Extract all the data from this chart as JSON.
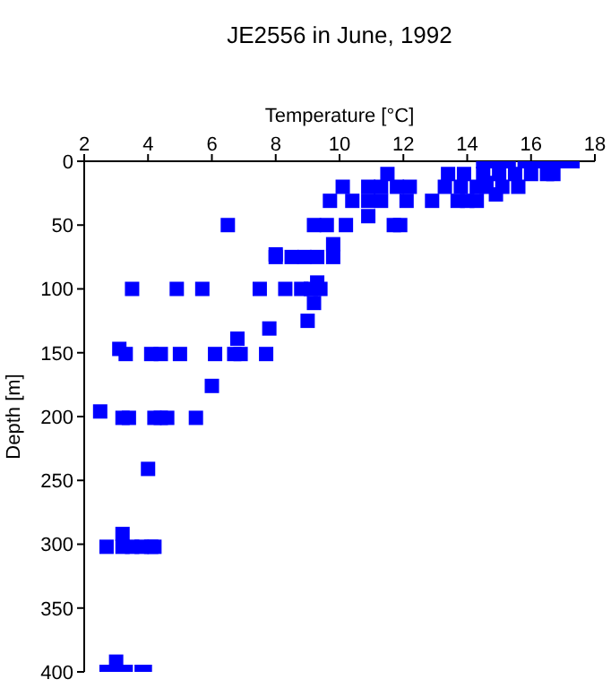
{
  "chart_data": {
    "type": "scatter",
    "title": "JE2556 in June, 1992",
    "xlabel": "Temperature [°C]",
    "ylabel": "Depth [m]",
    "xlim": [
      2,
      18
    ],
    "xticks": [
      2,
      4,
      6,
      8,
      10,
      12,
      14,
      16,
      18
    ],
    "ylim": [
      400,
      0
    ],
    "yticks": [
      0,
      50,
      100,
      150,
      200,
      250,
      300,
      350,
      400
    ],
    "grid": false,
    "legend": false,
    "marker": "square",
    "series": [
      {
        "color": "#0000ff",
        "x": [
          14.5,
          14.9,
          15.3,
          15.8,
          16.1,
          16.5,
          16.9,
          17.3,
          11.5,
          13.4,
          13.9,
          14.5,
          15.0,
          15.5,
          16.0,
          16.5,
          16.7,
          10.1,
          10.9,
          11.3,
          11.8,
          12.2,
          13.3,
          13.8,
          14.3,
          14.6,
          15.1,
          15.6,
          14.6,
          14.9,
          9.7,
          10.4,
          10.9,
          11.3,
          12.1,
          12.9,
          13.7,
          14.0,
          14.3,
          10.9,
          6.5,
          9.2,
          9.6,
          10.2,
          11.7,
          11.9,
          9.8,
          8.0,
          8.5,
          8.9,
          9.3,
          9.8,
          8.0,
          3.5,
          4.9,
          5.7,
          7.5,
          8.3,
          8.8,
          9.1,
          9.4,
          9.3,
          9.2,
          9.0,
          7.8,
          6.8,
          3.1,
          3.3,
          4.1,
          4.4,
          5.0,
          6.1,
          6.7,
          6.9,
          7.7,
          6.0,
          2.5,
          3.2,
          3.4,
          4.2,
          4.4,
          4.6,
          5.5,
          4.0,
          3.2,
          2.7,
          3.2,
          3.5,
          3.8,
          4.1,
          4.2,
          3.0,
          2.7,
          2.9,
          3.3,
          3.8,
          3.9
        ],
        "values": [
          0,
          0,
          0,
          0,
          0,
          0,
          0,
          0,
          10,
          10,
          10,
          10,
          10,
          10,
          10,
          10,
          10,
          20,
          20,
          20,
          20,
          20,
          20,
          20,
          20,
          20,
          20,
          20,
          17,
          26,
          31,
          31,
          31,
          31,
          31,
          31,
          31,
          31,
          31,
          43,
          50,
          50,
          50,
          50,
          50,
          50,
          65,
          75,
          75,
          75,
          75,
          75,
          73,
          100,
          100,
          100,
          100,
          100,
          100,
          100,
          100,
          95,
          111,
          125,
          131,
          139,
          147,
          151,
          151,
          151,
          151,
          151,
          151,
          151,
          151,
          176,
          196,
          201,
          201,
          201,
          201,
          201,
          201,
          241,
          292,
          302,
          302,
          302,
          302,
          302,
          302,
          392,
          400,
          400,
          400,
          400,
          400
        ]
      }
    ]
  }
}
